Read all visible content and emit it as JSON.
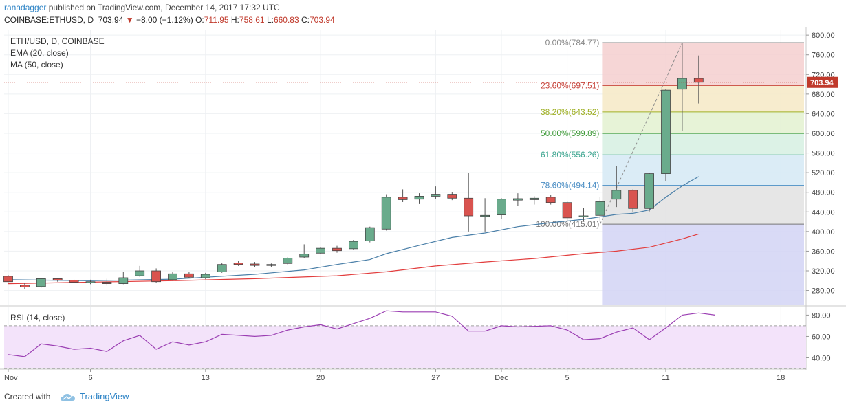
{
  "header": {
    "author": "ranadagger",
    "published_text": "published on TradingView.com, December 14, 2017 17:32 UTC",
    "symbol": "COINBASE:ETHUSD, D",
    "last_price": "703.94",
    "change_arrow": "▼",
    "change": "−8.00 (−1.12%)",
    "open_label": "O:",
    "open": "711.95",
    "high_label": "H:",
    "high": "758.61",
    "low_label": "L:",
    "low": "660.83",
    "close_label": "C:",
    "close": "703.94"
  },
  "legend": {
    "symbol_line": "ETH/USD, D, COINBASE",
    "ema_label": "EMA (20, close)",
    "ma_label": "MA (50, close)",
    "rsi_label": "RSI (14, close)"
  },
  "footer": {
    "created_with": "Created with",
    "brand": "TradingView"
  },
  "chart_data": [
    {
      "type": "candlestick",
      "ylim": [
        250,
        810
      ],
      "y_ticks": [
        "280.00",
        "320.00",
        "360.00",
        "400.00",
        "440.00",
        "480.00",
        "520.00",
        "560.00",
        "600.00",
        "640.00",
        "680.00",
        "720.00",
        "760.00",
        "800.00"
      ],
      "y_tick_values": [
        280,
        320,
        360,
        400,
        440,
        480,
        520,
        560,
        600,
        640,
        680,
        720,
        760,
        800
      ],
      "last_price_label": "703.94",
      "last_price": 703.94,
      "colors": {
        "up": "#6aab8c",
        "down": "#d9534f",
        "ema": "#4a7fa8",
        "ma": "#e23d3d"
      },
      "candles": [
        {
          "d": 0,
          "o": 309,
          "h": 311,
          "l": 297,
          "c": 298
        },
        {
          "d": 1,
          "o": 291,
          "h": 296,
          "l": 283,
          "c": 287
        },
        {
          "d": 2,
          "o": 288,
          "h": 306,
          "l": 286,
          "c": 304
        },
        {
          "d": 3,
          "o": 304,
          "h": 306,
          "l": 298,
          "c": 301
        },
        {
          "d": 4,
          "o": 301,
          "h": 302,
          "l": 295,
          "c": 297
        },
        {
          "d": 5,
          "o": 297,
          "h": 302,
          "l": 293,
          "c": 298
        },
        {
          "d": 6,
          "o": 297,
          "h": 304,
          "l": 290,
          "c": 294
        },
        {
          "d": 7,
          "o": 294,
          "h": 318,
          "l": 293,
          "c": 306
        },
        {
          "d": 8,
          "o": 310,
          "h": 330,
          "l": 308,
          "c": 320
        },
        {
          "d": 9,
          "o": 320,
          "h": 325,
          "l": 295,
          "c": 298
        },
        {
          "d": 10,
          "o": 302,
          "h": 318,
          "l": 300,
          "c": 314
        },
        {
          "d": 11,
          "o": 314,
          "h": 318,
          "l": 305,
          "c": 307
        },
        {
          "d": 12,
          "o": 306,
          "h": 316,
          "l": 303,
          "c": 313
        },
        {
          "d": 13,
          "o": 318,
          "h": 336,
          "l": 316,
          "c": 333
        },
        {
          "d": 14,
          "o": 336,
          "h": 340,
          "l": 330,
          "c": 333
        },
        {
          "d": 15,
          "o": 334,
          "h": 338,
          "l": 328,
          "c": 331
        },
        {
          "d": 16,
          "o": 331,
          "h": 335,
          "l": 327,
          "c": 333
        },
        {
          "d": 17,
          "o": 335,
          "h": 348,
          "l": 332,
          "c": 346
        },
        {
          "d": 18,
          "o": 348,
          "h": 374,
          "l": 346,
          "c": 354
        },
        {
          "d": 19,
          "o": 356,
          "h": 369,
          "l": 354,
          "c": 366
        },
        {
          "d": 20,
          "o": 366,
          "h": 371,
          "l": 357,
          "c": 361
        },
        {
          "d": 21,
          "o": 365,
          "h": 383,
          "l": 363,
          "c": 380
        },
        {
          "d": 22,
          "o": 381,
          "h": 410,
          "l": 378,
          "c": 408
        },
        {
          "d": 23,
          "o": 405,
          "h": 476,
          "l": 402,
          "c": 470
        },
        {
          "d": 24,
          "o": 470,
          "h": 486,
          "l": 460,
          "c": 465
        },
        {
          "d": 25,
          "o": 466,
          "h": 478,
          "l": 456,
          "c": 472
        },
        {
          "d": 26,
          "o": 472,
          "h": 492,
          "l": 466,
          "c": 476
        },
        {
          "d": 27,
          "o": 476,
          "h": 480,
          "l": 464,
          "c": 468
        },
        {
          "d": 28,
          "o": 468,
          "h": 519,
          "l": 400,
          "c": 432
        },
        {
          "d": 29,
          "o": 432,
          "h": 468,
          "l": 400,
          "c": 433
        },
        {
          "d": 30,
          "o": 434,
          "h": 468,
          "l": 426,
          "c": 466
        },
        {
          "d": 31,
          "o": 464,
          "h": 478,
          "l": 452,
          "c": 467
        },
        {
          "d": 32,
          "o": 465,
          "h": 472,
          "l": 455,
          "c": 468
        },
        {
          "d": 33,
          "o": 470,
          "h": 475,
          "l": 455,
          "c": 459
        },
        {
          "d": 34,
          "o": 459,
          "h": 462,
          "l": 418,
          "c": 428
        },
        {
          "d": 35,
          "o": 431,
          "h": 448,
          "l": 420,
          "c": 432
        },
        {
          "d": 36,
          "o": 433,
          "h": 470,
          "l": 420,
          "c": 461
        },
        {
          "d": 37,
          "o": 466,
          "h": 534,
          "l": 450,
          "c": 484
        },
        {
          "d": 38,
          "o": 484,
          "h": 486,
          "l": 440,
          "c": 447
        },
        {
          "d": 39,
          "o": 447,
          "h": 520,
          "l": 441,
          "c": 518
        },
        {
          "d": 40,
          "o": 518,
          "h": 690,
          "l": 502,
          "c": 688
        },
        {
          "d": 41,
          "o": 690,
          "h": 784.77,
          "l": 605,
          "c": 711.95
        },
        {
          "d": 42,
          "o": 711.95,
          "h": 758.61,
          "l": 660.83,
          "c": 703.94
        }
      ],
      "ema_20": [
        {
          "d": 0,
          "v": 302
        },
        {
          "d": 5,
          "v": 300
        },
        {
          "d": 10,
          "v": 303
        },
        {
          "d": 15,
          "v": 313
        },
        {
          "d": 18,
          "v": 322
        },
        {
          "d": 20,
          "v": 333
        },
        {
          "d": 22,
          "v": 343
        },
        {
          "d": 23,
          "v": 355
        },
        {
          "d": 25,
          "v": 372
        },
        {
          "d": 27,
          "v": 388
        },
        {
          "d": 29,
          "v": 397
        },
        {
          "d": 31,
          "v": 410
        },
        {
          "d": 33,
          "v": 418
        },
        {
          "d": 35,
          "v": 425
        },
        {
          "d": 37,
          "v": 435
        },
        {
          "d": 38,
          "v": 437
        },
        {
          "d": 39,
          "v": 444
        },
        {
          "d": 40,
          "v": 470
        },
        {
          "d": 41,
          "v": 493
        },
        {
          "d": 42,
          "v": 512
        }
      ],
      "ma_50": [
        {
          "d": 0,
          "v": 294
        },
        {
          "d": 5,
          "v": 297
        },
        {
          "d": 10,
          "v": 300
        },
        {
          "d": 15,
          "v": 304
        },
        {
          "d": 20,
          "v": 310
        },
        {
          "d": 23,
          "v": 318
        },
        {
          "d": 26,
          "v": 330
        },
        {
          "d": 29,
          "v": 338
        },
        {
          "d": 32,
          "v": 345
        },
        {
          "d": 35,
          "v": 355
        },
        {
          "d": 37,
          "v": 360
        },
        {
          "d": 39,
          "v": 368
        },
        {
          "d": 41,
          "v": 385
        },
        {
          "d": 42,
          "v": 395
        }
      ],
      "fibonacci": {
        "high": 784.77,
        "low": 415.01,
        "levels": [
          {
            "label": "0.00%(784.77)",
            "value": 784.77,
            "color": "#888888",
            "fill": "#f5cfcf"
          },
          {
            "label": "23.60%(697.51)",
            "value": 697.51,
            "color": "#c8453c",
            "fill": "#f6e9c6"
          },
          {
            "label": "38.20%(643.52)",
            "value": 643.52,
            "color": "#9fb024",
            "fill": "#e3f1d0"
          },
          {
            "label": "50.00%(599.89)",
            "value": 599.89,
            "color": "#3f9b3a",
            "fill": "#d6f0e2"
          },
          {
            "label": "61.80%(556.26)",
            "value": 556.26,
            "color": "#3aa48e",
            "fill": "#d5e9f5"
          },
          {
            "label": "78.60%(494.14)",
            "value": 494.14,
            "color": "#4b8ec4",
            "fill": "#e2e2e2"
          },
          {
            "label": "100.00%(415.01)",
            "value": 415.01,
            "color": "#777777",
            "fill": "#d2d3f4"
          }
        ],
        "start_day": 36,
        "end_day": 44
      },
      "x_ticks": [
        {
          "d": 0,
          "label": "Nov"
        },
        {
          "d": 5,
          "label": "6"
        },
        {
          "d": 12,
          "label": "13"
        },
        {
          "d": 19,
          "label": "20"
        },
        {
          "d": 26,
          "label": "27"
        },
        {
          "d": 30,
          "label": "Dec"
        },
        {
          "d": 34,
          "label": "5"
        },
        {
          "d": 40,
          "label": "11"
        },
        {
          "d": 47,
          "label": "18"
        }
      ]
    },
    {
      "type": "line",
      "ylim": [
        30,
        88
      ],
      "y_ticks": [
        "40.00",
        "60.00",
        "80.00"
      ],
      "y_tick_values": [
        40,
        60,
        80
      ],
      "bands": [
        30,
        70
      ],
      "color": "#9b3fb3",
      "values": [
        {
          "d": 0,
          "v": 43
        },
        {
          "d": 1,
          "v": 41
        },
        {
          "d": 2,
          "v": 53
        },
        {
          "d": 3,
          "v": 51
        },
        {
          "d": 4,
          "v": 48
        },
        {
          "d": 5,
          "v": 49
        },
        {
          "d": 6,
          "v": 46
        },
        {
          "d": 7,
          "v": 56
        },
        {
          "d": 8,
          "v": 61
        },
        {
          "d": 9,
          "v": 48
        },
        {
          "d": 10,
          "v": 55
        },
        {
          "d": 11,
          "v": 52
        },
        {
          "d": 12,
          "v": 55
        },
        {
          "d": 13,
          "v": 62
        },
        {
          "d": 15,
          "v": 60
        },
        {
          "d": 16,
          "v": 61
        },
        {
          "d": 17,
          "v": 66
        },
        {
          "d": 18,
          "v": 69
        },
        {
          "d": 19,
          "v": 71
        },
        {
          "d": 20,
          "v": 67
        },
        {
          "d": 21,
          "v": 72
        },
        {
          "d": 22,
          "v": 77
        },
        {
          "d": 23,
          "v": 84
        },
        {
          "d": 24,
          "v": 83
        },
        {
          "d": 26,
          "v": 83
        },
        {
          "d": 27,
          "v": 79
        },
        {
          "d": 28,
          "v": 65
        },
        {
          "d": 29,
          "v": 65
        },
        {
          "d": 30,
          "v": 70
        },
        {
          "d": 31,
          "v": 69
        },
        {
          "d": 33,
          "v": 70
        },
        {
          "d": 34,
          "v": 66
        },
        {
          "d": 35,
          "v": 57
        },
        {
          "d": 36,
          "v": 58
        },
        {
          "d": 37,
          "v": 64
        },
        {
          "d": 38,
          "v": 68
        },
        {
          "d": 39,
          "v": 57
        },
        {
          "d": 40,
          "v": 68
        },
        {
          "d": 41,
          "v": 80
        },
        {
          "d": 42,
          "v": 82
        },
        {
          "d": 43,
          "v": 80
        }
      ]
    }
  ]
}
